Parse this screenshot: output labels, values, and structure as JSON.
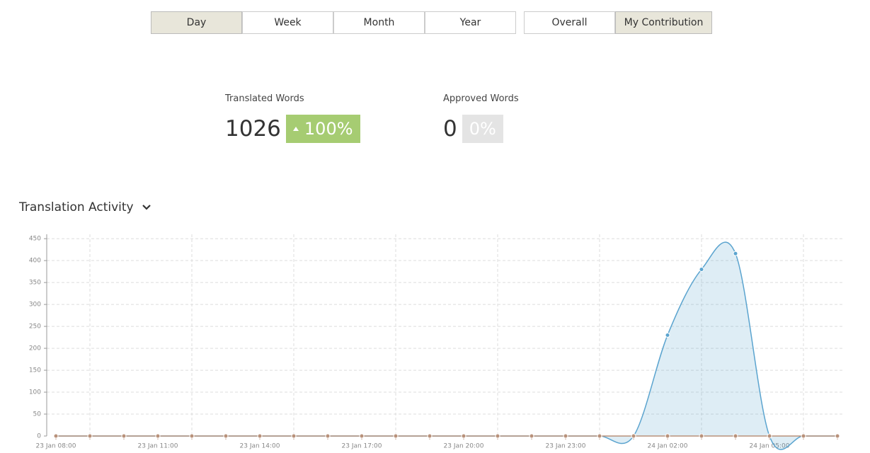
{
  "tabs": {
    "period": [
      "Day",
      "Week",
      "Month",
      "Year"
    ],
    "scope": [
      "Overall",
      "My Contribution"
    ],
    "active_period": 0,
    "active_scope": 1
  },
  "stats": [
    {
      "label": "Translated Words",
      "value": "1026",
      "change": "100%",
      "color": "#a6cc72"
    },
    {
      "label": "Approved Words",
      "value": "0",
      "change": "0%",
      "color": "#e4e4e4"
    }
  ],
  "section_title": "Translation Activity",
  "chart_data": {
    "type": "area",
    "categories": [
      "23 Jan 08:00",
      null,
      null,
      "23 Jan 11:00",
      null,
      null,
      "23 Jan 14:00",
      null,
      null,
      "23 Jan 17:00",
      null,
      null,
      "23 Jan 20:00",
      null,
      null,
      "23 Jan 23:00",
      null,
      null,
      "24 Jan 02:00",
      null,
      null,
      "24 Jan 05:00",
      null,
      null
    ],
    "series": [
      {
        "color": "#5ba4cf",
        "values": [
          0,
          0,
          0,
          0,
          0,
          0,
          0,
          0,
          0,
          0,
          0,
          0,
          0,
          0,
          0,
          0,
          0,
          0,
          230,
          380,
          416,
          0,
          0,
          0
        ]
      },
      {
        "color": "#b8917a",
        "values": [
          0,
          0,
          0,
          0,
          0,
          0,
          0,
          0,
          0,
          0,
          0,
          0,
          0,
          0,
          0,
          0,
          0,
          0,
          0,
          0,
          0,
          0,
          0,
          0
        ]
      }
    ],
    "ylim": [
      0,
      460
    ],
    "yticks": [
      0,
      50,
      100,
      150,
      200,
      250,
      300,
      350,
      400,
      450
    ],
    "grid": true
  }
}
